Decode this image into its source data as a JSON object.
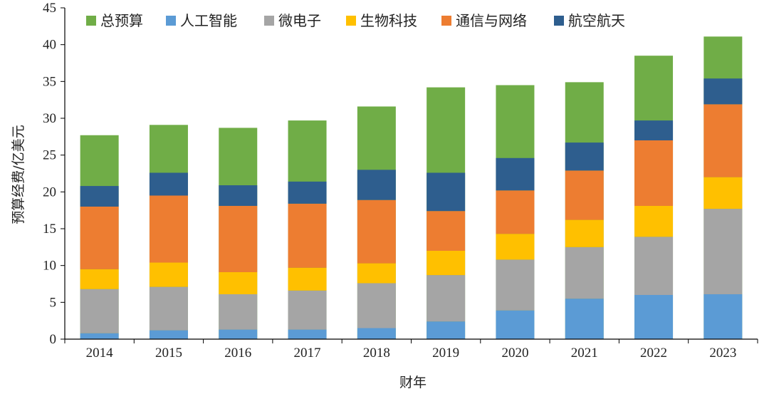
{
  "chart_data": {
    "type": "bar",
    "layout": "overlay-stacked",
    "ylabel": "预算经费/亿美元",
    "xlabel": "财年",
    "ylim": [
      0,
      45
    ],
    "yticks": [
      0,
      5,
      10,
      15,
      20,
      25,
      30,
      35,
      40,
      45
    ],
    "categories": [
      "2014",
      "2015",
      "2016",
      "2017",
      "2018",
      "2019",
      "2020",
      "2021",
      "2022",
      "2023"
    ],
    "total": {
      "name": "总预算",
      "color": "#70ad47",
      "values": [
        27.7,
        29.1,
        28.7,
        29.7,
        31.6,
        34.2,
        34.5,
        34.9,
        38.5,
        41.1
      ]
    },
    "series": [
      {
        "name": "人工智能",
        "color": "#5b9bd5",
        "values": [
          0.8,
          1.2,
          1.3,
          1.3,
          1.5,
          2.4,
          3.9,
          5.5,
          6.0,
          6.1
        ]
      },
      {
        "name": "微电子",
        "color": "#a5a5a5",
        "values": [
          6.0,
          5.9,
          4.8,
          5.3,
          6.1,
          6.3,
          6.9,
          7.0,
          7.9,
          11.6
        ]
      },
      {
        "name": "生物科技",
        "color": "#ffc000",
        "values": [
          2.7,
          3.3,
          3.0,
          3.1,
          2.7,
          3.3,
          3.5,
          3.7,
          4.2,
          4.3
        ]
      },
      {
        "name": "通信与网络",
        "color": "#ed7d31",
        "values": [
          8.5,
          9.1,
          9.0,
          8.7,
          8.6,
          5.4,
          5.9,
          6.7,
          8.9,
          9.9
        ]
      },
      {
        "name": "航空航天",
        "color": "#2e5e8e",
        "values": [
          2.8,
          3.1,
          2.8,
          3.0,
          4.1,
          5.2,
          4.4,
          3.8,
          2.7,
          3.5
        ]
      }
    ],
    "legend_order": [
      "总预算",
      "人工智能",
      "微电子",
      "生物科技",
      "通信与网络",
      "航空航天"
    ],
    "legend_position": "top",
    "grid": false
  }
}
